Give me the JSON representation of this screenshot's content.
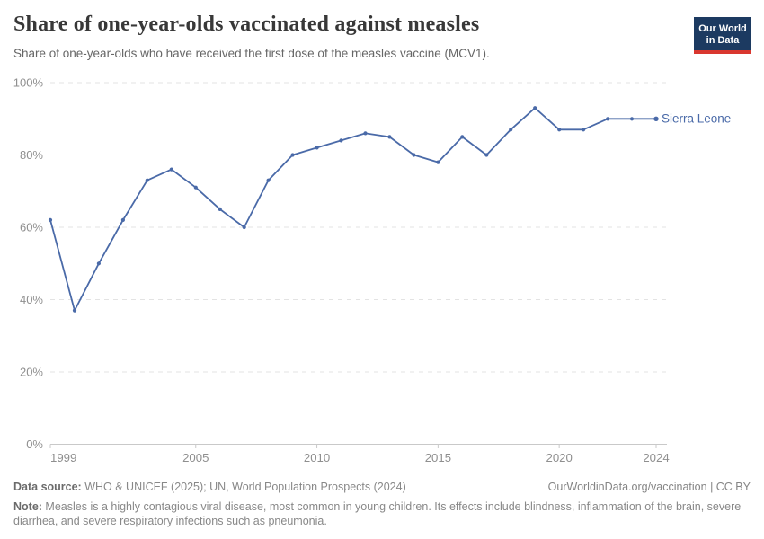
{
  "header": {
    "title": "Share of one-year-olds vaccinated against measles",
    "subtitle": "Share of one-year-olds who have received the first dose of the measles vaccine (MCV1).",
    "logo": {
      "line1": "Our World",
      "line2": "in Data",
      "bg_color": "#1c3a61",
      "bar_color": "#d9372f"
    }
  },
  "chart_data": {
    "type": "line",
    "title": "Share of one-year-olds vaccinated against measles",
    "subtitle": "Share of one-year-olds who have received the first dose of the measles vaccine (MCV1).",
    "x": [
      1999,
      2000,
      2001,
      2002,
      2003,
      2004,
      2005,
      2006,
      2007,
      2008,
      2009,
      2010,
      2011,
      2012,
      2013,
      2014,
      2015,
      2016,
      2017,
      2018,
      2019,
      2020,
      2021,
      2022,
      2023,
      2024
    ],
    "series": [
      {
        "name": "Sierra Leone",
        "values": [
          62,
          37,
          50,
          62,
          73,
          76,
          71,
          65,
          60,
          73,
          80,
          82,
          84,
          86,
          85,
          80,
          78,
          85,
          80,
          87,
          93,
          87,
          87,
          90,
          90,
          90
        ]
      }
    ],
    "xlabel": "",
    "ylabel": "",
    "ylim": [
      0,
      100
    ],
    "y_ticks": [
      {
        "value": 0,
        "label": "0%"
      },
      {
        "value": 20,
        "label": "20%"
      },
      {
        "value": 40,
        "label": "40%"
      },
      {
        "value": 60,
        "label": "60%"
      },
      {
        "value": 80,
        "label": "80%"
      },
      {
        "value": 100,
        "label": "100%"
      }
    ],
    "x_ticks": [
      1999,
      2005,
      2010,
      2015,
      2020,
      2024
    ],
    "grid": "horizontal-dashed",
    "legend": "end-of-line-label",
    "colors": {
      "line": "#4a6aa8",
      "grid": "#e3e3e3",
      "axis": "#c9c9c9",
      "tick_text": "#8f8f8f"
    }
  },
  "footer": {
    "source_label": "Data source:",
    "source_text": " WHO & UNICEF (2025); UN, World Population Prospects (2024)",
    "rights": "OurWorldinData.org/vaccination | CC BY",
    "note_label": "Note:",
    "note_text": " Measles is a highly contagious viral disease, most common in young children. Its effects include blindness, inflammation of the brain, severe diarrhea, and severe respiratory infections such as pneumonia."
  }
}
